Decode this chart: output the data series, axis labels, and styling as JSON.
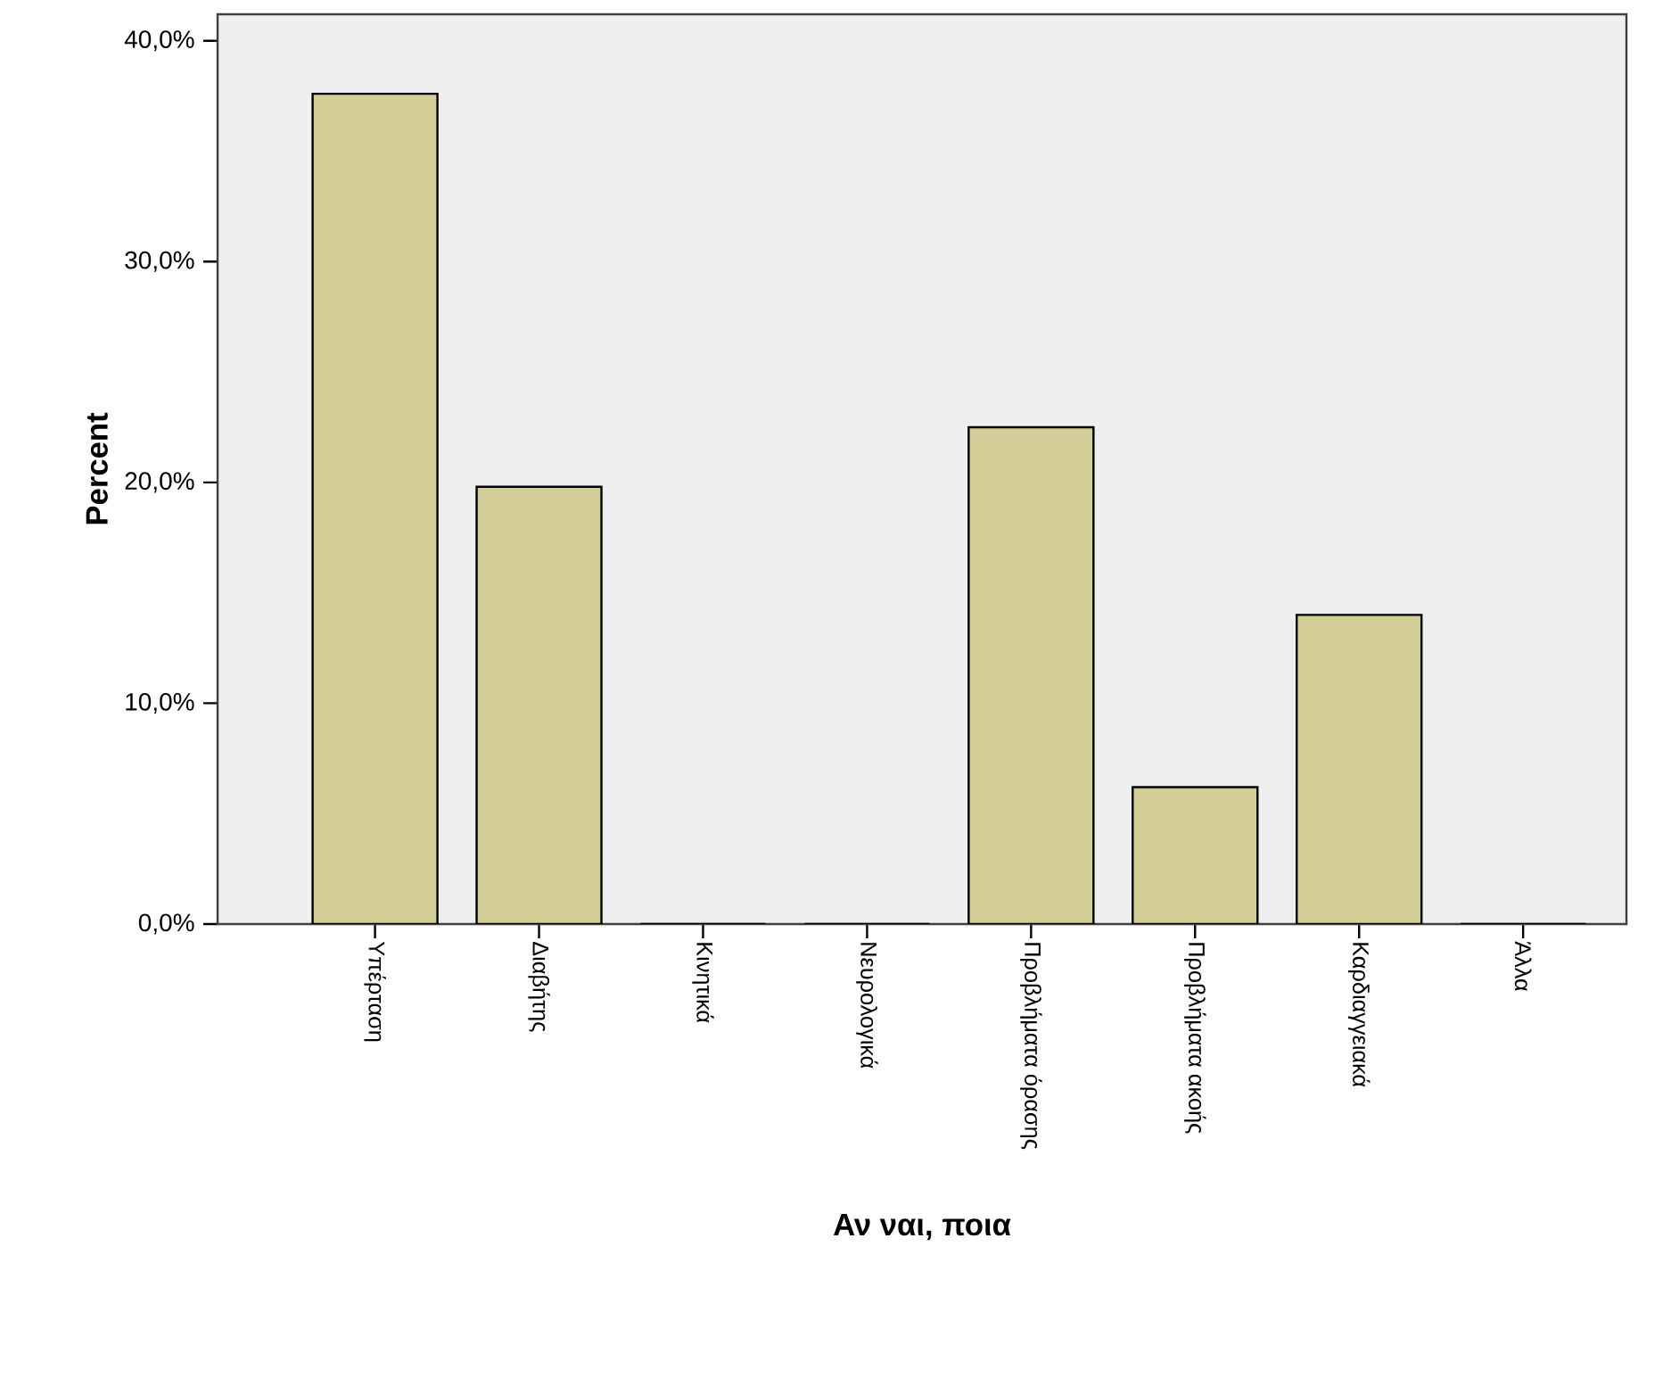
{
  "chart_data": {
    "type": "bar",
    "xlabel": "Αν ναι, ποια",
    "ylabel": "Percent",
    "categories": [
      "Υπέρταση",
      "Διαβήτης",
      "Κινητικά",
      "Νευρολογικά",
      "Προβλήματα όρασης",
      "Προβλήματα ακοής",
      "Καρδιαγγειακά",
      "Άλλα"
    ],
    "values": [
      37.6,
      19.8,
      0,
      0,
      22.5,
      6.2,
      14.0,
      0
    ],
    "color": "#d3cd98",
    "ylim": [
      0,
      41.2
    ],
    "yticks": [
      {
        "value": 0,
        "label": "0,0%"
      },
      {
        "value": 10,
        "label": "10,0%"
      },
      {
        "value": 20,
        "label": "20,0%"
      },
      {
        "value": 30,
        "label": "30,0%"
      },
      {
        "value": 40,
        "label": "40,0%"
      }
    ],
    "grid": false
  }
}
